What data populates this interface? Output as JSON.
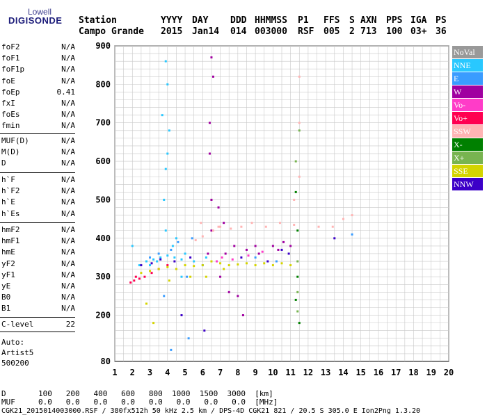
{
  "logo": {
    "top": "Lowell",
    "main": "DIGISONDE"
  },
  "header": {
    "row1": [
      "Station",
      "YYYY",
      "DAY",
      "DDD",
      "HHMMSS",
      "P1",
      "FFS",
      "S",
      "AXN",
      "PPS",
      "IGA",
      "PS"
    ],
    "row2": [
      "Campo Grande",
      "2015",
      "Jan14",
      "014",
      "003000",
      "RSF",
      "005",
      "2",
      "713",
      "100",
      "03+",
      "36"
    ]
  },
  "params": {
    "group1": [
      {
        "label": "foF2",
        "value": "N/A"
      },
      {
        "label": "foF1",
        "value": "N/A"
      },
      {
        "label": "foF1p",
        "value": "N/A"
      },
      {
        "label": "foE",
        "value": "N/A"
      },
      {
        "label": "foEp",
        "value": "0.41"
      },
      {
        "label": "fxI",
        "value": "N/A"
      },
      {
        "label": "foEs",
        "value": "N/A"
      },
      {
        "label": "fmin",
        "value": "N/A"
      }
    ],
    "group2": [
      {
        "label": "MUF(D)",
        "value": "N/A"
      },
      {
        "label": "M(D)",
        "value": "N/A"
      },
      {
        "label": "D",
        "value": "N/A"
      }
    ],
    "group3": [
      {
        "label": "h`F",
        "value": "N/A"
      },
      {
        "label": "h`F2",
        "value": "N/A"
      },
      {
        "label": "h`E",
        "value": "N/A"
      },
      {
        "label": "h`Es",
        "value": "N/A"
      }
    ],
    "group4": [
      {
        "label": "hmF2",
        "value": "N/A"
      },
      {
        "label": "hmF1",
        "value": "N/A"
      },
      {
        "label": "hmE",
        "value": "N/A"
      },
      {
        "label": "yF2",
        "value": "N/A"
      },
      {
        "label": "yF1",
        "value": "N/A"
      },
      {
        "label": "yE",
        "value": "N/A"
      },
      {
        "label": "B0",
        "value": "N/A"
      },
      {
        "label": "B1",
        "value": "N/A"
      }
    ],
    "clevel": {
      "label": "C-level",
      "value": "22"
    },
    "auto": [
      "Auto:",
      "Artist5",
      "500200"
    ]
  },
  "legend": [
    {
      "label": "NoVal",
      "color": "#999999"
    },
    {
      "label": "NNE",
      "color": "#29c8ff"
    },
    {
      "label": "E",
      "color": "#3a9cff"
    },
    {
      "label": "W",
      "color": "#a000a0"
    },
    {
      "label": "Vo-",
      "color": "#ff3cc8"
    },
    {
      "label": "Vo+",
      "color": "#ff0050"
    },
    {
      "label": "SSW",
      "color": "#ffb4b4"
    },
    {
      "label": "X-",
      "color": "#008000"
    },
    {
      "label": "X+",
      "color": "#78b450"
    },
    {
      "label": "SSE",
      "color": "#d4d400"
    },
    {
      "label": "NNW",
      "color": "#3c00c8"
    }
  ],
  "bottom": {
    "d_row": "D       100   200   400   600   800  1000  1500  3000  [km]",
    "muf_row": "MUF     0.0   0.0   0.0   0.0   0.0   0.0   0.0   0.0  [MHz]",
    "footer": "CGK21_2015014003000.RSF / 380fx512h 50 kHz 2.5 km / DPS-4D CGK21 821 / 20.5 S 305.0 E Ion2Png 1.3.20"
  },
  "chart_data": {
    "type": "scatter",
    "xlim": [
      1,
      20
    ],
    "ylim": [
      80,
      900
    ],
    "x_ticks": [
      1,
      2,
      3,
      4,
      5,
      6,
      7,
      8,
      9,
      10,
      11,
      12,
      13,
      14,
      15,
      16,
      17,
      18,
      19,
      20
    ],
    "y_ticks": [
      80,
      200,
      300,
      400,
      500,
      600,
      700,
      800,
      900
    ],
    "grid": true,
    "series": [
      {
        "name": "NNE",
        "color": "#29c8ff",
        "points": [
          [
            2.4,
            330
          ],
          [
            2.8,
            340
          ],
          [
            3.2,
            345
          ],
          [
            3.6,
            350
          ],
          [
            4.0,
            355
          ],
          [
            4.4,
            350
          ],
          [
            4.8,
            345
          ],
          [
            3.9,
            420
          ],
          [
            3.8,
            500
          ],
          [
            4.0,
            620
          ],
          [
            3.7,
            720
          ],
          [
            3.9,
            860
          ],
          [
            4.0,
            800
          ],
          [
            3.0,
            330
          ],
          [
            3.4,
            340
          ],
          [
            5.0,
            360
          ],
          [
            5.5,
            340
          ],
          [
            6.2,
            350
          ],
          [
            4.3,
            380
          ],
          [
            4.5,
            400
          ],
          [
            4.8,
            300
          ],
          [
            2.0,
            380
          ],
          [
            3.9,
            580
          ],
          [
            4.1,
            680
          ]
        ]
      },
      {
        "name": "E",
        "color": "#3a9cff",
        "points": [
          [
            3.0,
            350
          ],
          [
            3.5,
            360
          ],
          [
            4.2,
            370
          ],
          [
            4.6,
            390
          ],
          [
            5.1,
            300
          ],
          [
            5.4,
            400
          ],
          [
            3.8,
            250
          ],
          [
            5.2,
            140
          ],
          [
            4.2,
            110
          ],
          [
            6.0,
            330
          ],
          [
            9.0,
            350
          ],
          [
            10.2,
            340
          ],
          [
            14.5,
            410
          ]
        ]
      },
      {
        "name": "W",
        "color": "#a000a0",
        "points": [
          [
            6.4,
            620
          ],
          [
            6.4,
            700
          ],
          [
            6.6,
            820
          ],
          [
            6.5,
            500
          ],
          [
            6.5,
            420
          ],
          [
            6.9,
            480
          ],
          [
            7.2,
            440
          ],
          [
            7.3,
            360
          ],
          [
            6.3,
            360
          ],
          [
            7.8,
            380
          ],
          [
            8.5,
            370
          ],
          [
            9.0,
            380
          ],
          [
            9.2,
            360
          ],
          [
            10.0,
            380
          ],
          [
            10.3,
            370
          ],
          [
            10.6,
            390
          ],
          [
            11.0,
            380
          ],
          [
            6.5,
            870
          ],
          [
            7.0,
            300
          ],
          [
            8.0,
            250
          ],
          [
            8.3,
            200
          ],
          [
            7.5,
            260
          ]
        ]
      },
      {
        "name": "Vo-",
        "color": "#ff3cc8",
        "points": [
          [
            6.8,
            340
          ],
          [
            7.1,
            350
          ],
          [
            7.7,
            345
          ],
          [
            8.6,
            355
          ],
          [
            9.4,
            365
          ]
        ]
      },
      {
        "name": "Vo+",
        "color": "#ff0050",
        "points": [
          [
            1.9,
            285
          ],
          [
            2.1,
            290
          ],
          [
            2.4,
            295
          ],
          [
            2.7,
            300
          ],
          [
            3.1,
            310
          ],
          [
            3.5,
            320
          ],
          [
            4.0,
            330
          ],
          [
            2.2,
            300
          ]
        ]
      },
      {
        "name": "SSW",
        "color": "#ffb4b4",
        "points": [
          [
            5.6,
            395
          ],
          [
            6.0,
            405
          ],
          [
            6.6,
            420
          ],
          [
            7.0,
            430
          ],
          [
            7.6,
            425
          ],
          [
            8.2,
            430
          ],
          [
            8.8,
            440
          ],
          [
            9.6,
            430
          ],
          [
            10.4,
            440
          ],
          [
            11.2,
            435
          ],
          [
            11.5,
            700
          ],
          [
            11.5,
            820
          ],
          [
            11.5,
            560
          ],
          [
            12.6,
            430
          ],
          [
            13.4,
            430
          ],
          [
            14.0,
            450
          ],
          [
            14.5,
            460
          ],
          [
            11.2,
            500
          ],
          [
            6.9,
            430
          ],
          [
            5.9,
            440
          ]
        ]
      },
      {
        "name": "X-",
        "color": "#008000",
        "points": [
          [
            11.3,
            240
          ],
          [
            11.4,
            300
          ],
          [
            11.4,
            420
          ],
          [
            11.3,
            520
          ],
          [
            11.5,
            180
          ]
        ]
      },
      {
        "name": "X+",
        "color": "#78b450",
        "points": [
          [
            11.4,
            260
          ],
          [
            11.4,
            340
          ],
          [
            11.3,
            600
          ],
          [
            11.5,
            680
          ],
          [
            11.4,
            210
          ]
        ]
      },
      {
        "name": "SSE",
        "color": "#d4d400",
        "points": [
          [
            2.5,
            310
          ],
          [
            3.0,
            315
          ],
          [
            3.5,
            320
          ],
          [
            4.0,
            325
          ],
          [
            4.5,
            320
          ],
          [
            5.0,
            330
          ],
          [
            5.5,
            328
          ],
          [
            6.0,
            330
          ],
          [
            6.5,
            340
          ],
          [
            7.0,
            335
          ],
          [
            7.5,
            330
          ],
          [
            8.0,
            332
          ],
          [
            8.5,
            335
          ],
          [
            9.0,
            330
          ],
          [
            9.5,
            335
          ],
          [
            10.0,
            330
          ],
          [
            10.5,
            335
          ],
          [
            11.0,
            330
          ],
          [
            3.2,
            180
          ],
          [
            2.8,
            230
          ],
          [
            4.1,
            290
          ],
          [
            5.3,
            300
          ],
          [
            6.2,
            300
          ],
          [
            7.2,
            320
          ]
        ]
      },
      {
        "name": "NNW",
        "color": "#3c00c8",
        "points": [
          [
            2.5,
            330
          ],
          [
            3.1,
            335
          ],
          [
            3.6,
            345
          ],
          [
            4.4,
            340
          ],
          [
            5.3,
            350
          ],
          [
            8.2,
            350
          ],
          [
            9.7,
            340
          ],
          [
            10.5,
            370
          ],
          [
            10.9,
            360
          ],
          [
            6.1,
            160
          ],
          [
            4.8,
            200
          ],
          [
            13.5,
            400
          ]
        ]
      }
    ]
  }
}
